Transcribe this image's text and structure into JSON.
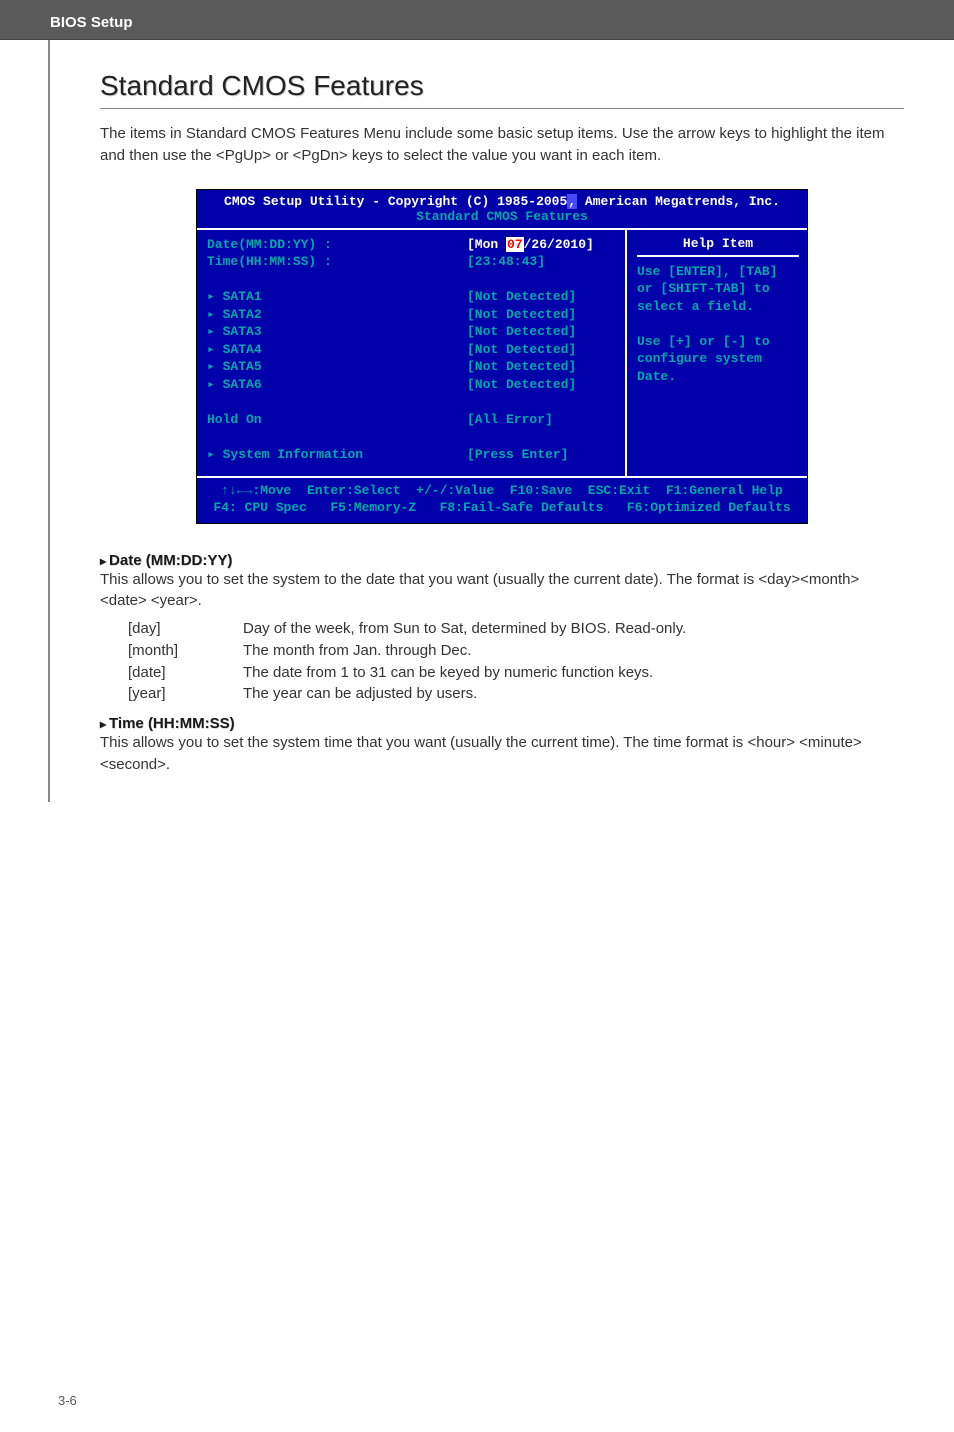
{
  "header": {
    "title": "BIOS Setup"
  },
  "section": {
    "title": "Standard CMOS Features",
    "intro": "The items in Standard CMOS Features Menu include some basic setup items. Use the arrow keys to highlight the item and then use the <PgUp> or <PgDn> keys to select the value you want in each item."
  },
  "bios": {
    "title_pre": "CMOS Setup Utility - Copyright (C) 1985-2005",
    "title_accent": ",",
    "title_post": " American Megatrends, Inc.",
    "subtitle": "Standard CMOS Features",
    "rows": [
      {
        "label": "Date(MM:DD:YY) :",
        "value_pre": "[Mon ",
        "value_sel": "07",
        "value_post": "/26/2010]",
        "white": true
      },
      {
        "label": "Time(HH:MM:SS) :",
        "value": "[23:48:43]"
      },
      {
        "label": "",
        "value": ""
      },
      {
        "label": "▸ SATA1",
        "value": "[Not Detected]"
      },
      {
        "label": "▸ SATA2",
        "value": "[Not Detected]"
      },
      {
        "label": "▸ SATA3",
        "value": "[Not Detected]"
      },
      {
        "label": "▸ SATA4",
        "value": "[Not Detected]"
      },
      {
        "label": "▸ SATA5",
        "value": "[Not Detected]"
      },
      {
        "label": "▸ SATA6",
        "value": "[Not Detected]"
      },
      {
        "label": "",
        "value": ""
      },
      {
        "label": "Hold On",
        "value": "[All Error]"
      },
      {
        "label": "",
        "value": ""
      },
      {
        "label": "▸ System Information",
        "value": "[Press Enter]"
      }
    ],
    "help": {
      "title": "Help Item",
      "lines": [
        "Use [ENTER], [TAB]",
        "or [SHIFT-TAB] to",
        "select a field.",
        "",
        "Use [+] or [-] to",
        "configure system Date."
      ]
    },
    "footer1": "↑↓←→:Move  Enter:Select  +/-/:Value  F10:Save  ESC:Exit  F1:General Help",
    "footer2": "F4: CPU Spec   F5:Memory-Z   F8:Fail-Safe Defaults   F6:Optimized Defaults"
  },
  "fields": [
    {
      "heading": "Date (MM:DD:YY)",
      "desc": "This allows you to set the system to the date that you want (usually the current date). The format is <day><month> <date> <year>.",
      "defs": [
        {
          "term": "[day]",
          "val": "Day of the week, from Sun to Sat, determined by BIOS. Read-only."
        },
        {
          "term": "[month]",
          "val": "The month from Jan. through Dec."
        },
        {
          "term": "[date]",
          "val": "The date from 1 to 31 can be keyed by numeric function keys."
        },
        {
          "term": "[year]",
          "val": "The year can be adjusted by users."
        }
      ]
    },
    {
      "heading": "Time (HH:MM:SS)",
      "desc": "This allows you to set the system time that you want (usually the current time). The time format is <hour> <minute> <second>."
    }
  ],
  "pagenum": "3-6"
}
